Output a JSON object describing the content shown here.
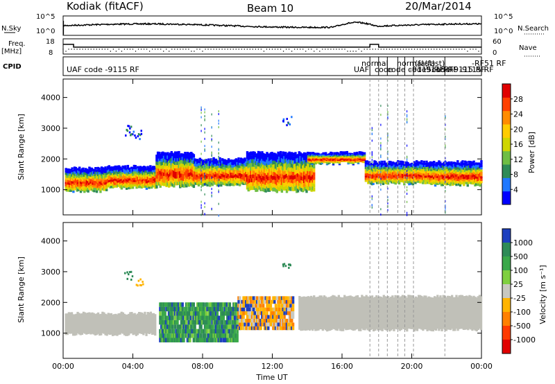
{
  "header": {
    "station": "Kodiak (fitACF)",
    "beam": "Beam 10",
    "date": "20/Mar/2014"
  },
  "strips": {
    "nsky_label": "N.Sky",
    "nsearch_label": "N.Search",
    "freq_label_1": "Freq.",
    "freq_label_2": "[MHz]",
    "nave_label": "Nave",
    "cpid_label": "CPID",
    "nsky_ticks": [
      "10^5",
      "10^0"
    ],
    "nsearch_ticks": [
      "10^5",
      "10^0"
    ],
    "freq_ticks": [
      "18",
      "8"
    ],
    "nave_ticks": [
      "60",
      "0"
    ],
    "cpid_text": "UAF code -9115 RF",
    "cpid_right_texts": [
      "UAF",
      "normal",
      "code",
      "code",
      "normal",
      "code",
      "(fast)",
      "(fast)",
      "code",
      "-9115 RF",
      "-9115 RF",
      "RF",
      "-9115 RF",
      "-9115 RF",
      "-RF51 RF"
    ]
  },
  "colors": {
    "power_scale": [
      "#0000ff",
      "#1f78ff",
      "#2e8b57",
      "#6fbe44",
      "#cfd600",
      "#ffcc00",
      "#ff8c00",
      "#ff4000",
      "#e00000"
    ],
    "velocity_scale": [
      "#1c3fbf",
      "#2e8b57",
      "#3aa84a",
      "#7fcf3f",
      "#c8c8c0",
      "#ffb400",
      "#ff8000",
      "#ff3a00",
      "#e00000"
    ],
    "ground_scatter": "#c0c0b8"
  },
  "chart_data": [
    {
      "type": "heatmap",
      "title": "Power",
      "ylabel": "Slant Range [km]",
      "xlabel": "",
      "x_ticks": [
        "00:00",
        "04:00",
        "08:00",
        "12:00",
        "16:00",
        "20:00",
        "00:00"
      ],
      "x_range_hours": [
        0,
        24
      ],
      "y_ticks": [
        "1000",
        "2000",
        "3000",
        "4000"
      ],
      "y_range_km": [
        180,
        4600
      ],
      "colorbar_label": "Power [dB]",
      "colorbar_ticks": [
        "4",
        "8",
        "12",
        "16",
        "20",
        "24",
        "28"
      ],
      "colorbar_range": [
        0,
        32
      ],
      "bands": [
        {
          "t0": 0.1,
          "t1": 2.5,
          "r0": 950,
          "r1": 1700
        },
        {
          "t0": 2.5,
          "t1": 5.3,
          "r0": 1050,
          "r1": 1750
        },
        {
          "t0": 5.3,
          "t1": 7.5,
          "r0": 1100,
          "r1": 2200
        },
        {
          "t0": 7.5,
          "t1": 10.5,
          "r0": 1150,
          "r1": 2000
        },
        {
          "t0": 10.5,
          "t1": 14.4,
          "r0": 950,
          "r1": 2200
        },
        {
          "t0": 14.0,
          "t1": 17.3,
          "r0": 1850,
          "r1": 2200
        },
        {
          "t0": 17.3,
          "t1": 21.0,
          "r0": 1200,
          "r1": 1900
        },
        {
          "t0": 21.0,
          "t1": 24.0,
          "r0": 1150,
          "r1": 1900
        }
      ],
      "patches": [
        {
          "t": 4.2,
          "r": 2800
        },
        {
          "t": 3.6,
          "r": 2950
        },
        {
          "t": 12.8,
          "r": 3250
        }
      ]
    },
    {
      "type": "heatmap",
      "title": "Velocity",
      "ylabel": "Slant Range [km]",
      "xlabel": "Time UT",
      "x_ticks": [
        "00:00",
        "04:00",
        "08:00",
        "12:00",
        "16:00",
        "20:00",
        "00:00"
      ],
      "x_range_hours": [
        0,
        24
      ],
      "y_ticks": [
        "1000",
        "2000",
        "3000",
        "4000"
      ],
      "y_range_km": [
        180,
        4600
      ],
      "colorbar_label": "Velocity [m s⁻¹]",
      "colorbar_ticks": [
        "1000",
        "500",
        "100",
        "25",
        "-25",
        "-100",
        "-500",
        "-1000"
      ],
      "ground_scatter_bands": [
        {
          "t0": 0.1,
          "t1": 5.3,
          "r0": 950,
          "r1": 1650
        },
        {
          "t0": 13.5,
          "t1": 24.0,
          "r0": 1100,
          "r1": 2200
        }
      ],
      "ionospheric_bands": [
        {
          "t0": 5.5,
          "t1": 10.0,
          "r0": 700,
          "r1": 2000,
          "v": 250
        },
        {
          "t0": 10.0,
          "t1": 13.2,
          "r0": 1100,
          "r1": 2200,
          "v": -150
        }
      ]
    }
  ]
}
